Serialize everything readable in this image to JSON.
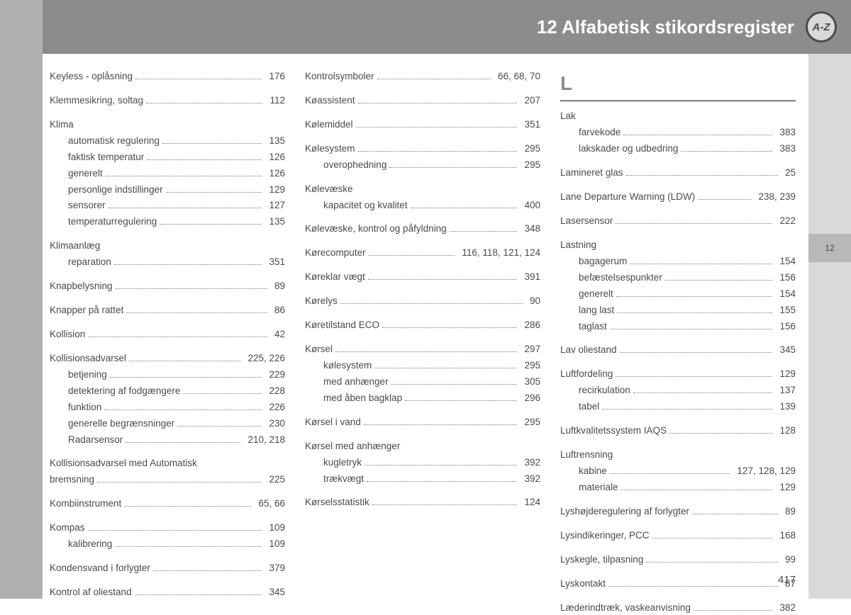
{
  "header": {
    "title": "12 Alfabetisk stikordsregister",
    "icon_label": "A-Z",
    "tab_label": "12"
  },
  "page_number": "417",
  "columns": [
    [
      {
        "type": "entry",
        "label": "Keyless - oplåsning",
        "page": "176"
      },
      {
        "type": "gap"
      },
      {
        "type": "entry",
        "label": "Klemmesikring, soltag",
        "page": "112"
      },
      {
        "type": "gap"
      },
      {
        "type": "head",
        "label": "Klima"
      },
      {
        "type": "sub",
        "label": "automatisk regulering",
        "page": "135"
      },
      {
        "type": "sub",
        "label": "faktisk temperatur",
        "page": "126"
      },
      {
        "type": "sub",
        "label": "generelt",
        "page": "126"
      },
      {
        "type": "sub",
        "label": "personlige indstillinger",
        "page": "129"
      },
      {
        "type": "sub",
        "label": "sensorer",
        "page": "127"
      },
      {
        "type": "sub",
        "label": "temperaturregulering",
        "page": "135"
      },
      {
        "type": "gap"
      },
      {
        "type": "head",
        "label": "Klimaanlæg"
      },
      {
        "type": "sub",
        "label": "reparation",
        "page": "351"
      },
      {
        "type": "gap"
      },
      {
        "type": "entry",
        "label": "Knapbelysning",
        "page": "89"
      },
      {
        "type": "gap"
      },
      {
        "type": "entry",
        "label": "Knapper på rattet",
        "page": "86"
      },
      {
        "type": "gap"
      },
      {
        "type": "entry",
        "label": "Kollision",
        "page": "42"
      },
      {
        "type": "gap"
      },
      {
        "type": "entry",
        "label": "Kollisionsadvarsel",
        "page": "225, 226"
      },
      {
        "type": "sub",
        "label": "betjening",
        "page": "229"
      },
      {
        "type": "sub",
        "label": "detektering af fodgængere",
        "page": "228"
      },
      {
        "type": "sub",
        "label": "funktion",
        "page": "226"
      },
      {
        "type": "sub",
        "label": "generelle begrænsninger",
        "page": "230"
      },
      {
        "type": "sub",
        "label": "Radarsensor",
        "page": "210, 218"
      },
      {
        "type": "gap"
      },
      {
        "type": "head",
        "label": "Kollisionsadvarsel med Automatisk"
      },
      {
        "type": "entry",
        "label": "bremsning",
        "page": "225"
      },
      {
        "type": "gap"
      },
      {
        "type": "entry",
        "label": "Kombiinstrument",
        "page": "65, 66"
      },
      {
        "type": "gap"
      },
      {
        "type": "entry",
        "label": "Kompas",
        "page": "109"
      },
      {
        "type": "sub",
        "label": "kalibrering",
        "page": "109"
      },
      {
        "type": "gap"
      },
      {
        "type": "entry",
        "label": "Kondensvand i forlygter",
        "page": "379"
      },
      {
        "type": "gap"
      },
      {
        "type": "entry",
        "label": "Kontrol af oliestand",
        "page": "345"
      }
    ],
    [
      {
        "type": "entry",
        "label": "Kontrolsymboler",
        "page": "66, 68, 70"
      },
      {
        "type": "gap"
      },
      {
        "type": "entry",
        "label": "Køassistent",
        "page": "207"
      },
      {
        "type": "gap"
      },
      {
        "type": "entry",
        "label": "Kølemiddel",
        "page": "351"
      },
      {
        "type": "gap"
      },
      {
        "type": "entry",
        "label": "Kølesystem",
        "page": "295"
      },
      {
        "type": "sub",
        "label": "overophedning",
        "page": "295"
      },
      {
        "type": "gap"
      },
      {
        "type": "head",
        "label": "Kølevæske"
      },
      {
        "type": "sub",
        "label": "kapacitet og kvalitet",
        "page": "400"
      },
      {
        "type": "gap"
      },
      {
        "type": "entry",
        "label": "Kølevæske, kontrol og påfyldning",
        "page": "348"
      },
      {
        "type": "gap"
      },
      {
        "type": "entry",
        "label": "Kørecomputer",
        "page": "116, 118, 121, 124"
      },
      {
        "type": "gap"
      },
      {
        "type": "entry",
        "label": "Køreklar vægt",
        "page": "391"
      },
      {
        "type": "gap"
      },
      {
        "type": "entry",
        "label": "Kørelys",
        "page": "90"
      },
      {
        "type": "gap"
      },
      {
        "type": "entry",
        "label": "Køretilstand ECO",
        "page": "286"
      },
      {
        "type": "gap"
      },
      {
        "type": "entry",
        "label": "Kørsel",
        "page": "297"
      },
      {
        "type": "sub",
        "label": "kølesystem",
        "page": "295"
      },
      {
        "type": "sub",
        "label": "med anhænger",
        "page": "305"
      },
      {
        "type": "sub",
        "label": "med åben bagklap",
        "page": "296"
      },
      {
        "type": "gap"
      },
      {
        "type": "entry",
        "label": "Kørsel i vand",
        "page": "295"
      },
      {
        "type": "gap"
      },
      {
        "type": "head",
        "label": "Kørsel med anhænger"
      },
      {
        "type": "sub",
        "label": "kugletryk",
        "page": "392"
      },
      {
        "type": "sub",
        "label": "trækvægt",
        "page": "392"
      },
      {
        "type": "gap"
      },
      {
        "type": "entry",
        "label": "Kørselsstatistik",
        "page": "124"
      }
    ],
    [
      {
        "type": "section",
        "label": "L"
      },
      {
        "type": "head",
        "label": "Lak"
      },
      {
        "type": "sub",
        "label": "farvekode",
        "page": "383"
      },
      {
        "type": "sub",
        "label": "lakskader og udbedring",
        "page": "383"
      },
      {
        "type": "gap"
      },
      {
        "type": "entry",
        "label": "Lamineret glas",
        "page": "25"
      },
      {
        "type": "gap"
      },
      {
        "type": "entry",
        "label": "Lane Departure Warning (LDW)",
        "page": "238, 239"
      },
      {
        "type": "gap"
      },
      {
        "type": "entry",
        "label": "Lasersensor",
        "page": "222"
      },
      {
        "type": "gap"
      },
      {
        "type": "head",
        "label": "Lastning"
      },
      {
        "type": "sub",
        "label": "bagagerum",
        "page": "154"
      },
      {
        "type": "sub",
        "label": "befæstelsespunkter",
        "page": "156"
      },
      {
        "type": "sub",
        "label": "generelt",
        "page": "154"
      },
      {
        "type": "sub",
        "label": "lang last",
        "page": "155"
      },
      {
        "type": "sub",
        "label": "taglast",
        "page": "156"
      },
      {
        "type": "gap"
      },
      {
        "type": "entry",
        "label": "Lav oliestand",
        "page": "345"
      },
      {
        "type": "gap"
      },
      {
        "type": "entry",
        "label": "Luftfordeling",
        "page": "129"
      },
      {
        "type": "sub",
        "label": "recirkulation",
        "page": "137"
      },
      {
        "type": "sub",
        "label": "tabel",
        "page": "139"
      },
      {
        "type": "gap"
      },
      {
        "type": "entry",
        "label": "Luftkvalitetssystem IAQS",
        "page": "128"
      },
      {
        "type": "gap"
      },
      {
        "type": "head",
        "label": "Luftrensning"
      },
      {
        "type": "sub",
        "label": "kabine",
        "page": "127, 128, 129"
      },
      {
        "type": "sub",
        "label": "materiale",
        "page": "129"
      },
      {
        "type": "gap"
      },
      {
        "type": "entry",
        "label": "Lyshøjderegulering af forlygter",
        "page": "89"
      },
      {
        "type": "gap"
      },
      {
        "type": "entry",
        "label": "Lysindikeringer, PCC",
        "page": "168"
      },
      {
        "type": "gap"
      },
      {
        "type": "entry",
        "label": "Lyskegle, tilpasning",
        "page": "99"
      },
      {
        "type": "gap"
      },
      {
        "type": "entry",
        "label": "Lyskontakt",
        "page": "87"
      },
      {
        "type": "gap"
      },
      {
        "type": "entry",
        "label": "Læderindtræk, vaskeanvisning",
        "page": "382"
      }
    ]
  ]
}
